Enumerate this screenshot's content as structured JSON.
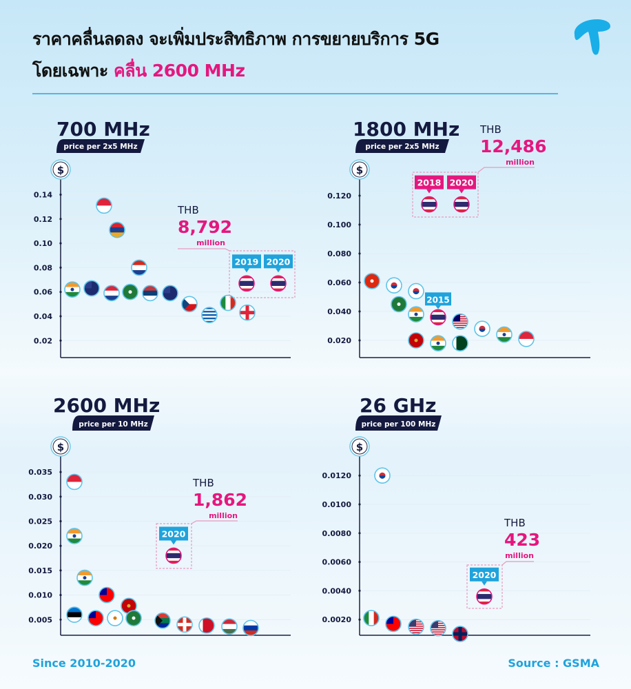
{
  "header": {
    "title_line1": "ราคาคลื่นลดลง จะเพิ่มประสิทธิภาพ การขยายบริการ 5G",
    "title_line2_prefix": "โดยเฉพาะ ",
    "title_line2_highlight": "คลื่น 2600 MHz",
    "logo": "telenor-dtac-logo"
  },
  "colors": {
    "accent_pink": "#e5177e",
    "accent_blue": "#1fa3dc",
    "navy": "#141a3f"
  },
  "chart_data": [
    {
      "type": "scatter",
      "title": "700 MHz",
      "subtitle": "price per 2x5 MHz",
      "y_icon": "dollar-icon",
      "y_icon_glyph": "$",
      "yticks": [
        "0.14",
        "0.12",
        "0.10",
        "0.08",
        "0.06",
        "0.04",
        "0.02"
      ],
      "ylim": [
        0,
        0.15
      ],
      "points": [
        {
          "country": "India",
          "value": 0.062
        },
        {
          "country": "New Zealand",
          "value": 0.063
        },
        {
          "country": "Singapore",
          "value": 0.131
        },
        {
          "country": "Croatia",
          "value": 0.059
        },
        {
          "country": "Armenia",
          "value": 0.111
        },
        {
          "country": "Saudi Arabia",
          "value": 0.06
        },
        {
          "country": "Paraguay",
          "value": 0.08
        },
        {
          "country": "Serbia",
          "value": 0.059
        },
        {
          "country": "Australia",
          "value": 0.059
        },
        {
          "country": "Czech Republic",
          "value": 0.05
        },
        {
          "country": "Greece",
          "value": 0.041
        },
        {
          "country": "Italy",
          "value": 0.051
        },
        {
          "country": "Georgia",
          "value": 0.043
        }
      ],
      "highlight": {
        "currency": "THB",
        "amount": "8,792",
        "unit": "million",
        "points": [
          {
            "country": "Thailand",
            "year": "2019",
            "value": 0.067
          },
          {
            "country": "Thailand",
            "year": "2020",
            "value": 0.067
          }
        ],
        "label_color": "#1fa3dc"
      }
    },
    {
      "type": "scatter",
      "title": "1800 MHz",
      "subtitle": "price per 2x5 MHz",
      "y_icon": "dollar-icon",
      "y_icon_glyph": "$",
      "yticks": [
        "0.120",
        "0.100",
        "0.080",
        "0.060",
        "0.040",
        "0.020"
      ],
      "ylim": [
        0,
        0.13
      ],
      "points": [
        {
          "country": "Hong Kong",
          "value": 0.061
        },
        {
          "country": "South Korea",
          "value": 0.058
        },
        {
          "country": "Saudi Arabia",
          "value": 0.045
        },
        {
          "country": "South Korea",
          "value": 0.054
        },
        {
          "country": "India",
          "value": 0.038
        },
        {
          "country": "Montenegro",
          "value": 0.02
        },
        {
          "country": "Thailand",
          "value": 0.036,
          "year": "2015"
        },
        {
          "country": "India",
          "value": 0.018
        },
        {
          "country": "Malaysia",
          "value": 0.033
        },
        {
          "country": "Pakistan",
          "value": 0.018
        },
        {
          "country": "South Korea",
          "value": 0.028
        },
        {
          "country": "India",
          "value": 0.024
        },
        {
          "country": "Singapore",
          "value": 0.021
        }
      ],
      "highlight": {
        "currency": "THB",
        "amount": "12,486",
        "unit": "million",
        "points": [
          {
            "country": "Thailand",
            "year": "2018",
            "value": 0.114
          },
          {
            "country": "Thailand",
            "year": "2020",
            "value": 0.114
          }
        ],
        "label_color": "#e5177e"
      }
    },
    {
      "type": "scatter",
      "title": "2600 MHz",
      "subtitle": "price per 10 MHz",
      "y_icon": "dollar-icon",
      "y_icon_glyph": "$",
      "yticks": [
        "0.035",
        "0.030",
        "0.025",
        "0.020",
        "0.015",
        "0.010",
        "0.005"
      ],
      "ylim": [
        0,
        0.037
      ],
      "points": [
        {
          "country": "Singapore",
          "value": 0.033
        },
        {
          "country": "India",
          "value": 0.022
        },
        {
          "country": "Estonia",
          "value": 0.006
        },
        {
          "country": "India",
          "value": 0.0135
        },
        {
          "country": "Taiwan",
          "value": 0.0053
        },
        {
          "country": "Taiwan",
          "value": 0.01
        },
        {
          "country": "Cyprus",
          "value": 0.0053
        },
        {
          "country": "Montenegro",
          "value": 0.0078
        },
        {
          "country": "Saudi Arabia",
          "value": 0.0053
        },
        {
          "country": "South Africa",
          "value": 0.0048
        },
        {
          "country": "Switzerland",
          "value": 0.004
        },
        {
          "country": "Bahrain",
          "value": 0.0038
        },
        {
          "country": "Hungary",
          "value": 0.0036
        },
        {
          "country": "Russia",
          "value": 0.0033
        }
      ],
      "highlight": {
        "currency": "THB",
        "amount": "1,862",
        "unit": "million",
        "points": [
          {
            "country": "Thailand",
            "year": "2020",
            "value": 0.018
          }
        ],
        "label_color": "#1fa3dc"
      }
    },
    {
      "type": "scatter",
      "title": "26 GHz",
      "subtitle": "price per 100 MHz",
      "y_icon": "dollar-icon",
      "y_icon_glyph": "$",
      "yticks": [
        "0.0120",
        "0.0100",
        "0.0080",
        "0.0060",
        "0.0040",
        "0.0020"
      ],
      "ylim": [
        0,
        0.013
      ],
      "points": [
        {
          "country": "Italy",
          "value": 0.0021
        },
        {
          "country": "South Korea",
          "value": 0.012
        },
        {
          "country": "Taiwan",
          "value": 0.0017
        },
        {
          "country": "United States",
          "value": 0.0015
        },
        {
          "country": "United States",
          "value": 0.0014
        },
        {
          "country": "Norway",
          "value": 0.001
        }
      ],
      "highlight": {
        "currency": "THB",
        "amount": "423",
        "unit": "million",
        "points": [
          {
            "country": "Thailand",
            "year": "2020",
            "value": 0.0036
          }
        ],
        "label_color": "#1fa3dc"
      }
    }
  ],
  "footer": {
    "period": "Since 2010-2020",
    "source": "Source : GSMA"
  }
}
